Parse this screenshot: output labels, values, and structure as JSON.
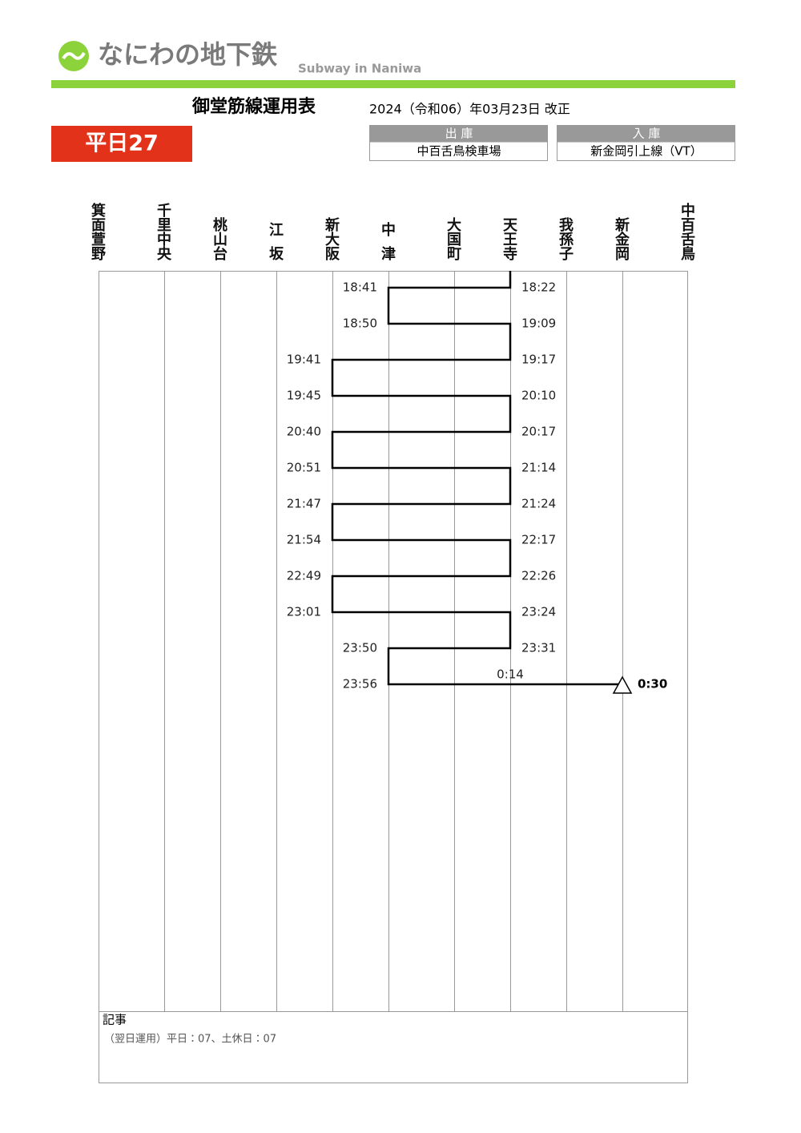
{
  "header": {
    "logo": "なにわの地下鉄",
    "logo_subtitle": "Subway in Naniwa",
    "title": "御堂筋線運用表",
    "revision": "2024（令和06）年03月23日 改正",
    "badge": "平日27",
    "depart": {
      "label": "出 庫",
      "value": "中百舌鳥検車場"
    },
    "arrive": {
      "label": "入 庫",
      "value": "新金岡引上線（VT）"
    }
  },
  "stations": [
    "箕面萱野",
    "千里中央",
    "桃山台",
    "江坂",
    "新大阪",
    "中津",
    "大国町",
    "天王寺",
    "我孫子",
    "新金岡",
    "中百舌鳥"
  ],
  "timetable": [
    [
      null,
      null,
      null,
      null,
      null,
      "18:41",
      null,
      "18:22",
      null,
      null,
      null
    ],
    [
      null,
      null,
      null,
      null,
      null,
      "18:50",
      null,
      "19:09",
      null,
      null,
      null
    ],
    [
      null,
      null,
      null,
      null,
      "19:41",
      null,
      null,
      "19:17",
      null,
      null,
      null
    ],
    [
      null,
      null,
      null,
      null,
      "19:45",
      null,
      null,
      "20:10",
      null,
      null,
      null
    ],
    [
      null,
      null,
      null,
      null,
      "20:40",
      null,
      null,
      "20:17",
      null,
      null,
      null
    ],
    [
      null,
      null,
      null,
      null,
      "20:51",
      null,
      null,
      "21:14",
      null,
      null,
      null
    ],
    [
      null,
      null,
      null,
      null,
      "21:47",
      null,
      null,
      "21:24",
      null,
      null,
      null
    ],
    [
      null,
      null,
      null,
      null,
      "21:54",
      null,
      null,
      "22:17",
      null,
      null,
      null
    ],
    [
      null,
      null,
      null,
      null,
      "22:49",
      null,
      null,
      "22:26",
      null,
      null,
      null
    ],
    [
      null,
      null,
      null,
      null,
      "23:01",
      null,
      null,
      "23:24",
      null,
      null,
      null
    ],
    [
      null,
      null,
      null,
      null,
      null,
      "23:50",
      null,
      "23:31",
      null,
      null,
      null
    ],
    [
      null,
      null,
      null,
      null,
      null,
      "23:56",
      null,
      "0:14",
      null,
      "0:30",
      null
    ]
  ],
  "remarks": {
    "label": "記事",
    "text": "（翌日運用）平日：07、土休日：07"
  }
}
